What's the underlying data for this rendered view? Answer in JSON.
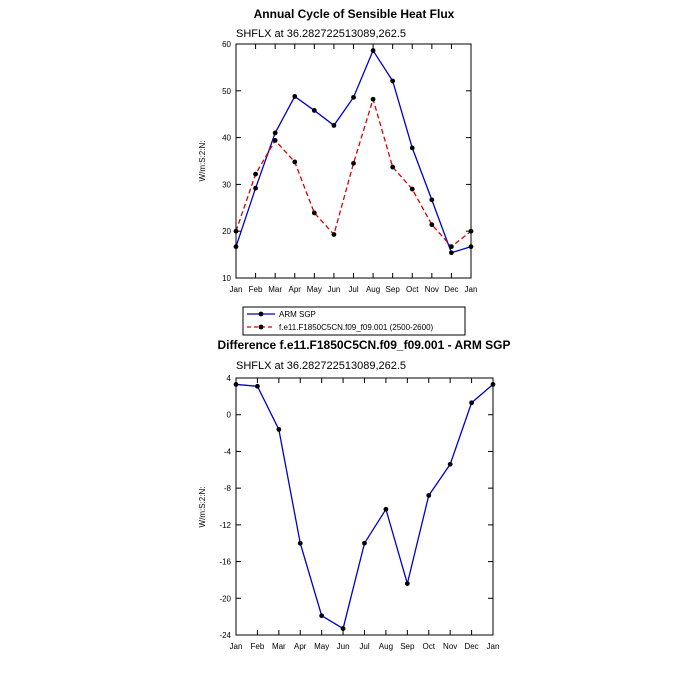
{
  "chart_data": [
    {
      "type": "line",
      "title": "Annual Cycle of Sensible Heat Flux",
      "subtitle": "SHFLX at 36.282722513089,262.5",
      "ylabel": "W/m:S:2:N:",
      "xlabel": "",
      "categories": [
        "Jan",
        "Feb",
        "Mar",
        "Apr",
        "May",
        "Jun",
        "Jul",
        "Aug",
        "Sep",
        "Oct",
        "Nov",
        "Dec",
        "Jan"
      ],
      "ylim": [
        10,
        60
      ],
      "yticks": [
        10,
        20,
        30,
        40,
        50,
        60
      ],
      "series": [
        {
          "name": "ARM SGP",
          "color": "#0000cc",
          "dash": "solid",
          "values": [
            16.7,
            29.2,
            41.0,
            48.8,
            45.8,
            42.6,
            48.6,
            58.6,
            52.1,
            37.8,
            26.7,
            15.4,
            16.7
          ]
        },
        {
          "name": "f.e11.F1850C5CN.f09_f09.001 (2500-2600)",
          "color": "#dd0000",
          "dash": "dashed",
          "values": [
            20.0,
            32.2,
            39.4,
            34.8,
            23.9,
            19.3,
            34.5,
            48.2,
            33.7,
            29.0,
            21.4,
            16.7,
            20.0
          ]
        }
      ]
    },
    {
      "type": "line",
      "title": "Difference f.e11.F1850C5CN.f09_f09.001 - ARM SGP",
      "subtitle": "SHFLX at 36.282722513089,262.5",
      "ylabel": "W/m:S:2:N:",
      "xlabel": "",
      "categories": [
        "Jan",
        "Feb",
        "Mar",
        "Apr",
        "May",
        "Jun",
        "Jul",
        "Aug",
        "Sep",
        "Oct",
        "Nov",
        "Dec",
        "Jan"
      ],
      "ylim": [
        -24,
        4
      ],
      "yticks": [
        4,
        0,
        -4,
        -8,
        -12,
        -16,
        -20,
        -24
      ],
      "series": [
        {
          "color": "#0000cc",
          "dash": "solid",
          "values": [
            3.3,
            3.1,
            -1.6,
            -14.0,
            -21.9,
            -23.3,
            -14.0,
            -10.3,
            -18.4,
            -8.8,
            -5.4,
            1.3,
            3.3
          ]
        }
      ]
    }
  ]
}
